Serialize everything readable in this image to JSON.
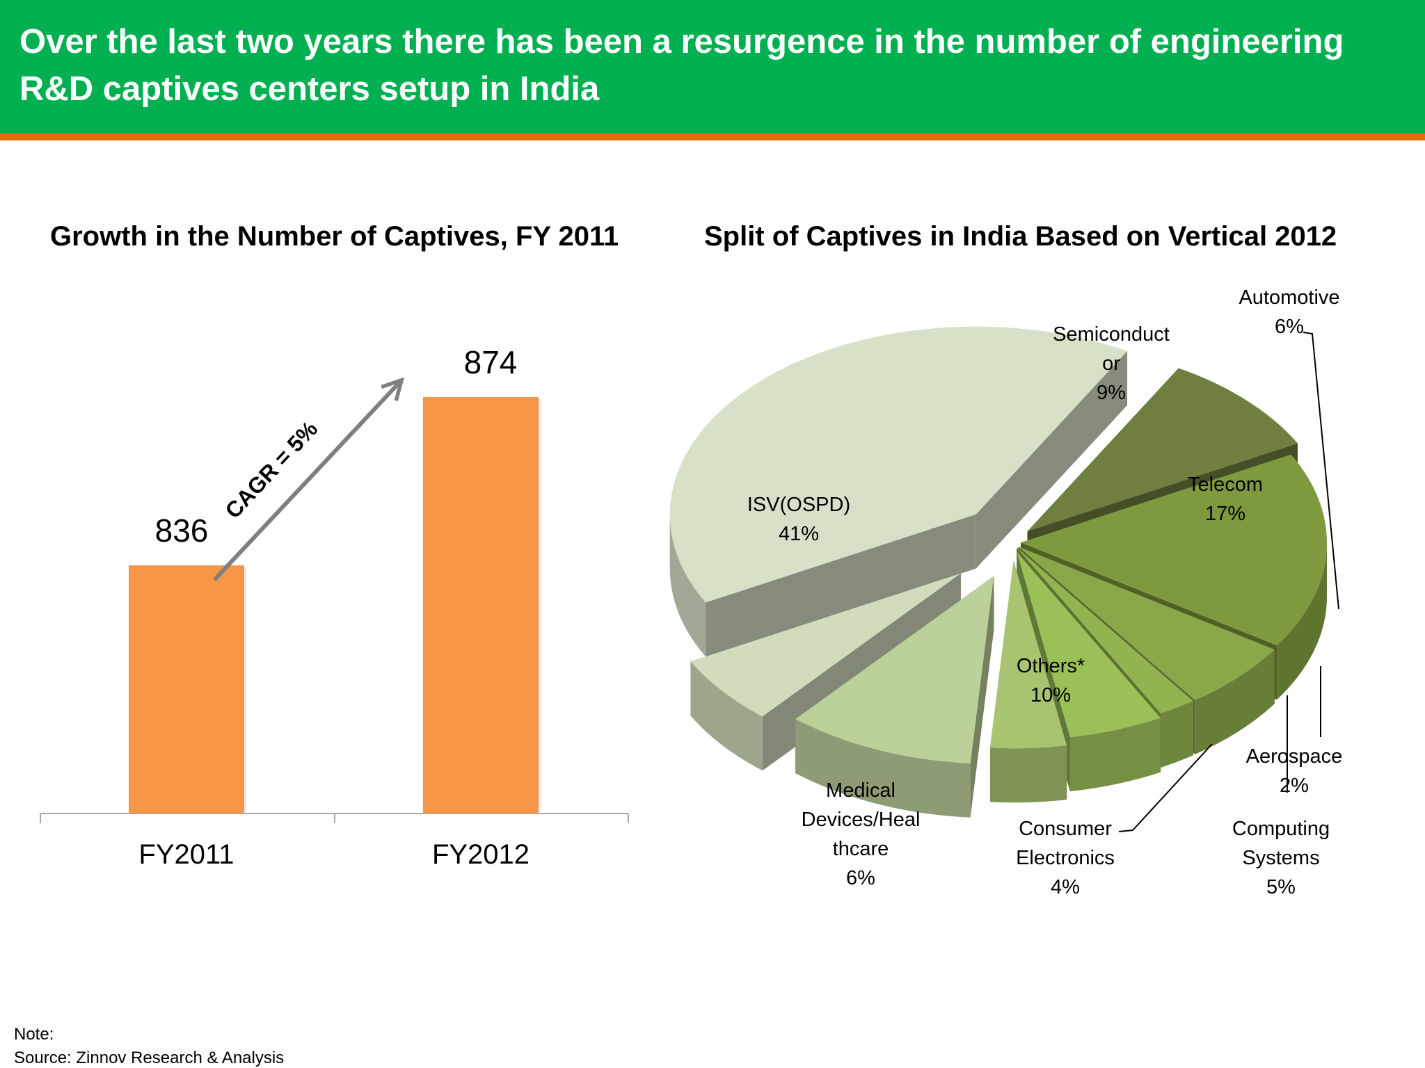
{
  "header": {
    "title": "Over the last two years there has been a resurgence  in the number of engineering\nR&D captives centers setup in India",
    "background_color": "#00b050",
    "accent_color": "#e46c0a"
  },
  "chart_data": [
    {
      "type": "bar",
      "title": "Growth in the Number of Captives, FY 2011",
      "categories": [
        "FY2011",
        "FY2012"
      ],
      "values": [
        836,
        874
      ],
      "annotation": "CAGR = 5%",
      "bar_color": "#f79646",
      "ylim": [
        780,
        880
      ]
    },
    {
      "type": "pie",
      "title": "Split of Captives in India Based on Vertical 2012",
      "slices": [
        {
          "label": "ISV(OSPD)",
          "value": 41,
          "value_label": "41%",
          "color": "#d8e0c8"
        },
        {
          "label": "Semiconductor",
          "value": 9,
          "value_label": "9%",
          "color": "#6e7f40"
        },
        {
          "label": "Telecom",
          "value": 17,
          "value_label": "17%",
          "color": "#7f9a3e"
        },
        {
          "label": "Automotive",
          "value": 6,
          "value_label": "6%",
          "color": "#8aa84a"
        },
        {
          "label": "Aerospace",
          "value": 2,
          "value_label": "2%",
          "color": "#92b450"
        },
        {
          "label": "Computing Systems",
          "value": 5,
          "value_label": "5%",
          "color": "#9cc058"
        },
        {
          "label": "Consumer Electronics",
          "value": 4,
          "value_label": "4%",
          "color": "#a8c470"
        },
        {
          "label": "Others*",
          "value": 10,
          "value_label": "10%",
          "color": "#bcd09a"
        },
        {
          "label": "Medical Devices/Healthcare",
          "value": 6,
          "value_label": "6%",
          "color": "#d2dcbc"
        }
      ]
    }
  ],
  "labels": {
    "isv": [
      "ISV(OSPD)",
      "41%"
    ],
    "semi": [
      "Semiconduct",
      "or",
      "9%"
    ],
    "auto": [
      "Automotive",
      "6%"
    ],
    "telecom": [
      "Telecom",
      "17%"
    ],
    "others": [
      "Others*",
      "10%"
    ],
    "aero": [
      "Aerospace",
      "2%"
    ],
    "medical": [
      "Medical",
      "Devices/Heal",
      "thcare",
      "6%"
    ],
    "consumer": [
      "Consumer",
      "Electronics",
      "4%"
    ],
    "computing": [
      "Computing",
      "Systems",
      "5%"
    ]
  },
  "footer": {
    "note": "Note:",
    "source": "Source: Zinnov Research & Analysis"
  }
}
